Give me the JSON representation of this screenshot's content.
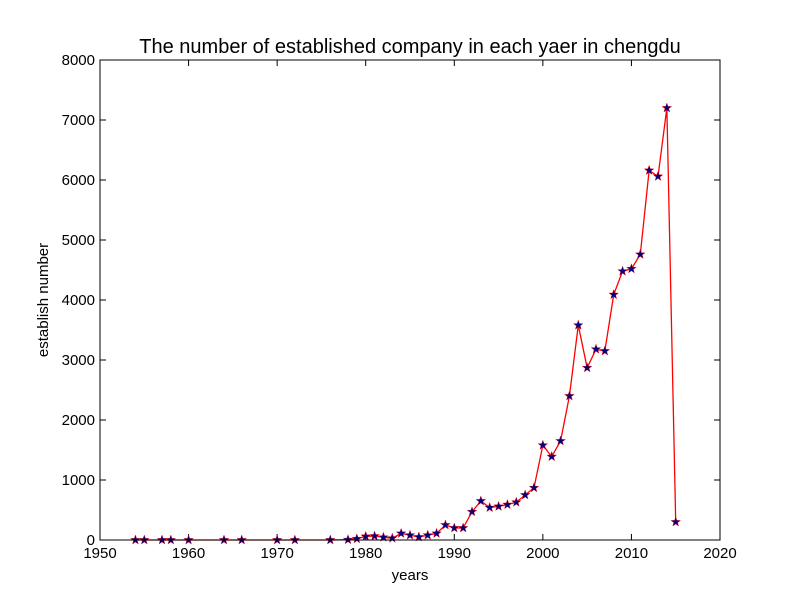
{
  "chart_data": {
    "type": "line",
    "title": "The number of established company in each yaer in chengdu",
    "xlabel": "years",
    "ylabel": "establish number",
    "xlim": [
      1950,
      2020
    ],
    "ylim": [
      0,
      8000
    ],
    "xticks": [
      1950,
      1960,
      1970,
      1980,
      1990,
      2000,
      2010,
      2020
    ],
    "yticks": [
      0,
      1000,
      2000,
      3000,
      4000,
      5000,
      6000,
      7000,
      8000
    ],
    "grid": false,
    "line_color": "#ff0000",
    "marker": "star",
    "marker_color": "#000080",
    "series": [
      {
        "x": [
          1954,
          1955,
          1957,
          1958,
          1960,
          1964,
          1966,
          1970,
          1972,
          1976,
          1978,
          1979,
          1980,
          1981,
          1982,
          1983,
          1984,
          1985,
          1986,
          1987,
          1988,
          1989,
          1990,
          1991,
          1992,
          1993,
          1994,
          1995,
          1996,
          1997,
          1998,
          1999,
          2000,
          2001,
          2002,
          2003,
          2004,
          2005,
          2006,
          2007,
          2008,
          2009,
          2010,
          2011,
          2012,
          2013,
          2014,
          2015
        ],
        "y": [
          0,
          0,
          0,
          0,
          0,
          0,
          0,
          0,
          0,
          0,
          5,
          20,
          60,
          65,
          45,
          30,
          110,
          80,
          50,
          80,
          110,
          250,
          200,
          200,
          470,
          650,
          540,
          560,
          590,
          630,
          750,
          870,
          1580,
          1390,
          1650,
          2400,
          3580,
          2870,
          3180,
          3150,
          4090,
          4480,
          4520,
          4760,
          6160,
          6060,
          7200,
          300
        ]
      }
    ]
  }
}
